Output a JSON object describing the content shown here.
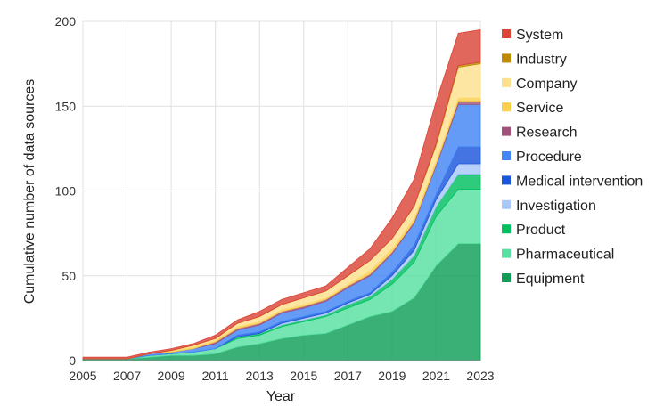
{
  "chart_data": {
    "type": "area",
    "stacked": true,
    "title": "",
    "xlabel": "Year",
    "ylabel": "Cumulative number of data sources",
    "xlim": [
      2005,
      2023
    ],
    "ylim": [
      0,
      200
    ],
    "xticks": [
      2005,
      2007,
      2009,
      2011,
      2013,
      2015,
      2017,
      2019,
      2021,
      2023
    ],
    "yticks": [
      0,
      50,
      100,
      150,
      200
    ],
    "grid": true,
    "legend_position": "right",
    "x": [
      2005,
      2006,
      2007,
      2008,
      2009,
      2010,
      2011,
      2012,
      2013,
      2014,
      2015,
      2016,
      2017,
      2018,
      2019,
      2020,
      2021,
      2022,
      2023
    ],
    "series": [
      {
        "name": "Equipment",
        "color": "#0f9d58",
        "values": [
          1,
          1,
          1,
          2,
          3,
          3,
          4,
          8,
          10,
          13,
          15,
          16,
          21,
          26,
          29,
          37,
          56,
          69,
          69
        ]
      },
      {
        "name": "Pharmaceutical",
        "color": "#57e0a1",
        "values": [
          0,
          0,
          0,
          1,
          1,
          2,
          3,
          5,
          5,
          7,
          8,
          10,
          10,
          10,
          16,
          21,
          29,
          32,
          32
        ]
      },
      {
        "name": "Product",
        "color": "#00c060",
        "values": [
          0,
          0,
          0,
          0,
          0,
          0,
          0,
          1,
          1,
          1,
          1,
          1,
          2,
          2,
          3,
          4,
          6,
          9,
          9
        ]
      },
      {
        "name": "Investigation",
        "color": "#a8c7fa",
        "values": [
          0,
          0,
          0,
          0,
          0,
          0,
          0,
          0,
          0,
          1,
          1,
          1,
          1,
          1,
          2,
          3,
          4,
          6,
          6
        ]
      },
      {
        "name": "Medical intervention",
        "color": "#1a56db",
        "values": [
          0,
          0,
          0,
          0,
          0,
          0,
          0,
          1,
          1,
          1,
          1,
          1,
          1,
          1,
          2,
          3,
          3,
          10,
          10
        ]
      },
      {
        "name": "Procedure",
        "color": "#4285f4",
        "values": [
          0,
          0,
          0,
          1,
          1,
          2,
          3,
          3,
          4,
          5,
          5,
          6,
          8,
          10,
          11,
          13,
          17,
          25,
          25
        ]
      },
      {
        "name": "Research",
        "color": "#a2527a",
        "values": [
          0,
          0,
          0,
          0,
          0,
          0,
          1,
          1,
          1,
          1,
          1,
          1,
          1,
          1,
          1,
          1,
          1,
          2,
          2
        ]
      },
      {
        "name": "Service",
        "color": "#fbcf49",
        "values": [
          0,
          0,
          0,
          0,
          1,
          1,
          1,
          1,
          1,
          1,
          1,
          1,
          1,
          2,
          2,
          2,
          2,
          2,
          2
        ]
      },
      {
        "name": "Company",
        "color": "#fce08c",
        "values": [
          0,
          0,
          0,
          0,
          0,
          1,
          1,
          2,
          3,
          3,
          4,
          4,
          5,
          6,
          6,
          7,
          9,
          18,
          20
        ]
      },
      {
        "name": "Industry",
        "color": "#c08a00",
        "values": [
          0,
          0,
          0,
          0,
          0,
          0,
          0,
          0,
          0,
          0,
          0,
          0,
          0,
          0,
          0,
          0,
          1,
          1,
          1
        ]
      },
      {
        "name": "System",
        "color": "#db4437",
        "values": [
          1,
          1,
          1,
          1,
          1,
          1,
          2,
          2,
          3,
          3,
          3,
          3,
          5,
          7,
          12,
          16,
          25,
          19,
          19
        ]
      }
    ],
    "legend_order": [
      "System",
      "Industry",
      "Company",
      "Service",
      "Research",
      "Procedure",
      "Medical intervention",
      "Investigation",
      "Product",
      "Pharmaceutical",
      "Equipment"
    ]
  }
}
